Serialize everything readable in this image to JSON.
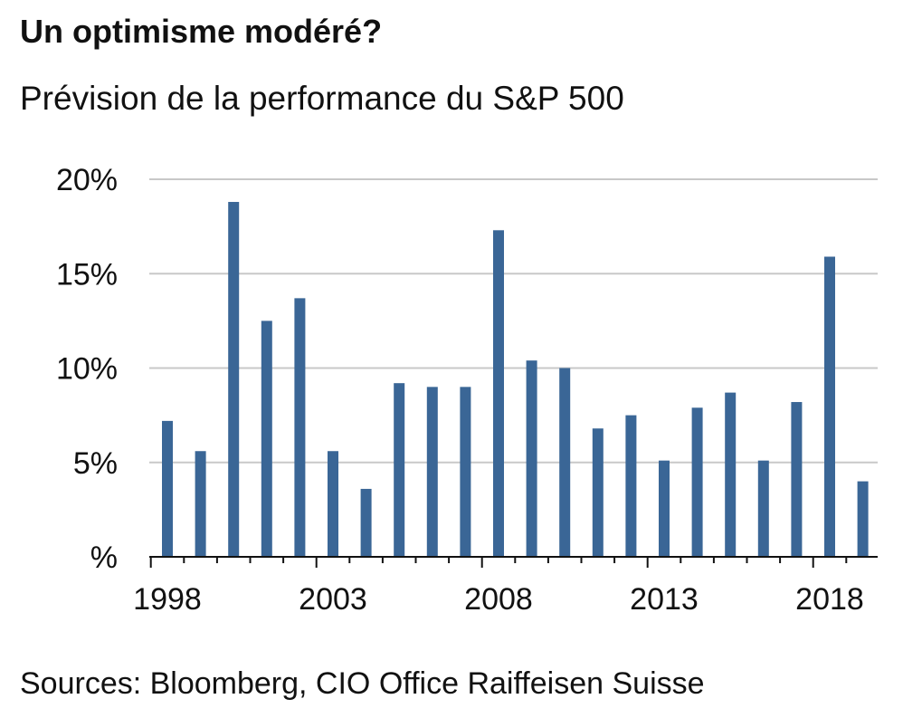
{
  "header": {
    "title": "Un optimisme modéré?",
    "subtitle": "Prévision de la performance du S&P 500"
  },
  "footer": {
    "source": "Sources: Bloomberg, CIO Office Raiffeisen Suisse"
  },
  "colors": {
    "bar": "#3a6696",
    "grid": "#c8c8c8",
    "axis": "#111111"
  },
  "chart_data": {
    "type": "bar",
    "title": "Un optimisme modéré?",
    "subtitle": "Prévision de la performance du S&P 500",
    "xlabel": "",
    "ylabel": "",
    "categories": [
      1998,
      1999,
      2000,
      2001,
      2002,
      2003,
      2004,
      2005,
      2006,
      2007,
      2008,
      2009,
      2010,
      2011,
      2012,
      2013,
      2014,
      2015,
      2016,
      2017,
      2018,
      2019
    ],
    "values": [
      7.2,
      5.6,
      18.8,
      12.5,
      13.7,
      5.6,
      3.6,
      9.2,
      9.0,
      9.0,
      17.3,
      10.4,
      10.0,
      6.8,
      7.5,
      5.1,
      7.9,
      8.7,
      5.1,
      8.2,
      15.9,
      4.0
    ],
    "ylim": [
      0,
      20
    ],
    "yticks": [
      0,
      5,
      10,
      15,
      20
    ],
    "ytick_labels": [
      "%",
      "5%",
      "10%",
      "15%",
      "20%"
    ],
    "xtick_labels": [
      "1998",
      "2003",
      "2008",
      "2013",
      "2018"
    ],
    "grid": true,
    "legend": "none"
  }
}
